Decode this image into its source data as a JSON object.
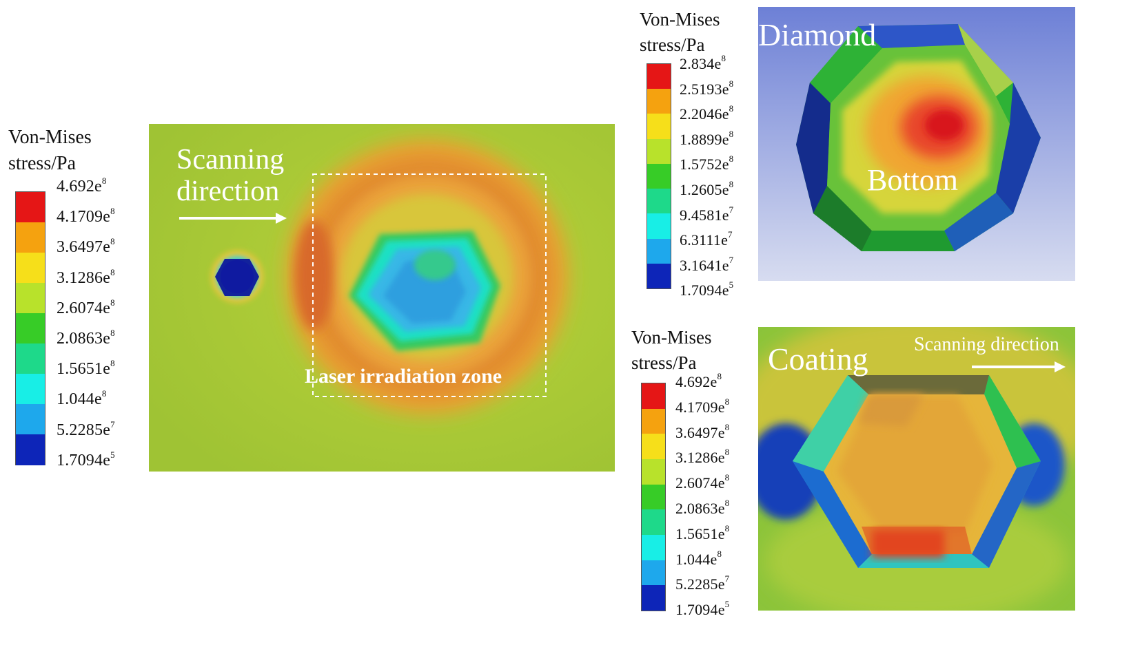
{
  "legend_left": {
    "title_line1": "Von-Mises",
    "title_line2": "stress/Pa",
    "levels": [
      {
        "mant": "4.692e",
        "exp": "8",
        "color": "#e51616"
      },
      {
        "mant": "4.1709e",
        "exp": "8",
        "color": "#f5a20f"
      },
      {
        "mant": "3.6497e",
        "exp": "8",
        "color": "#f6df1a"
      },
      {
        "mant": "3.1286e",
        "exp": "8",
        "color": "#b8e22b"
      },
      {
        "mant": "2.6074e",
        "exp": "8",
        "color": "#37cc27"
      },
      {
        "mant": "2.0863e",
        "exp": "8",
        "color": "#1ed98a"
      },
      {
        "mant": "1.5651e",
        "exp": "8",
        "color": "#18eee6"
      },
      {
        "mant": "1.044e",
        "exp": "8",
        "color": "#1ea8ec"
      },
      {
        "mant": "5.2285e",
        "exp": "7",
        "color": "#0d25b8"
      },
      {
        "mant": "1.7094e",
        "exp": "5",
        "color": ""
      }
    ]
  },
  "legend_top_right": {
    "title_line1": "Von-Mises",
    "title_line2": "stress/Pa",
    "levels": [
      {
        "mant": "2.834e",
        "exp": "8",
        "color": "#e51616"
      },
      {
        "mant": "2.5193e",
        "exp": "8",
        "color": "#f5a20f"
      },
      {
        "mant": "2.2046e",
        "exp": "8",
        "color": "#f6df1a"
      },
      {
        "mant": "1.8899e",
        "exp": "8",
        "color": "#b8e22b"
      },
      {
        "mant": "1.5752e",
        "exp": "8",
        "color": "#37cc27"
      },
      {
        "mant": "1.2605e",
        "exp": "8",
        "color": "#1ed98a"
      },
      {
        "mant": "9.4581e",
        "exp": "7",
        "color": "#18eee6"
      },
      {
        "mant": "6.3111e",
        "exp": "7",
        "color": "#1ea8ec"
      },
      {
        "mant": "3.1641e",
        "exp": "7",
        "color": "#0d25b8"
      },
      {
        "mant": "1.7094e",
        "exp": "5",
        "color": ""
      }
    ]
  },
  "legend_bottom_right": {
    "title_line1": "Von-Mises",
    "title_line2": "stress/Pa",
    "levels": [
      {
        "mant": "4.692e",
        "exp": "8",
        "color": "#e51616"
      },
      {
        "mant": "4.1709e",
        "exp": "8",
        "color": "#f5a20f"
      },
      {
        "mant": "3.6497e",
        "exp": "8",
        "color": "#f6df1a"
      },
      {
        "mant": "3.1286e",
        "exp": "8",
        "color": "#b8e22b"
      },
      {
        "mant": "2.6074e",
        "exp": "8",
        "color": "#37cc27"
      },
      {
        "mant": "2.0863e",
        "exp": "8",
        "color": "#1ed98a"
      },
      {
        "mant": "1.5651e",
        "exp": "8",
        "color": "#18eee6"
      },
      {
        "mant": "1.044e",
        "exp": "8",
        "color": "#1ea8ec"
      },
      {
        "mant": "5.2285e",
        "exp": "7",
        "color": "#0d25b8"
      },
      {
        "mant": "1.7094e",
        "exp": "5",
        "color": ""
      }
    ]
  },
  "main_panel": {
    "scanning_line1": "Scanning",
    "scanning_line2": "direction",
    "zone_label": "Laser irradiation zone"
  },
  "diamond_panel": {
    "title": "Diamond",
    "bottom_label": "Bottom"
  },
  "coating_panel": {
    "title": "Coating",
    "scanning_label": "Scanning direction"
  }
}
